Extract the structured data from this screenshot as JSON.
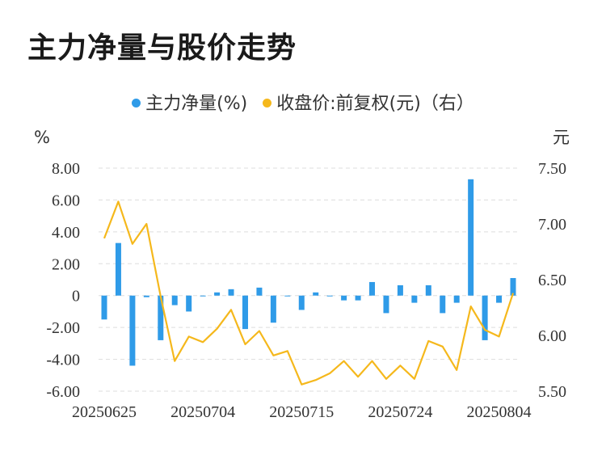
{
  "title": "主力净量与股价走势",
  "legend": {
    "bar_label": "主力净量(%)",
    "line_label": "收盘价:前复权(元)（右）"
  },
  "colors": {
    "bar": "#2f9be8",
    "line": "#f5b81c",
    "grid": "#dddddd"
  },
  "chart_data": {
    "type": "bar+line",
    "title": "主力净量与股价走势",
    "left_unit": "%",
    "right_unit": "元",
    "y_left": {
      "min": -6,
      "max": 8,
      "ticks": [
        8,
        6,
        4,
        2,
        0,
        -2,
        -4,
        -6
      ],
      "tick_labels": [
        "8.00",
        "6.00",
        "4.00",
        "2.00",
        "0",
        "-2.00",
        "-4.00",
        "-6.00"
      ]
    },
    "y_right": {
      "min": 5.5,
      "max": 7.5,
      "ticks": [
        7.5,
        7.0,
        6.5,
        6.0,
        5.5
      ],
      "tick_labels": [
        "7.50",
        "7.00",
        "6.50",
        "6.00",
        "5.50"
      ]
    },
    "x_tick_labels": [
      "20250625",
      "20250704",
      "20250715",
      "20250724",
      "20250804"
    ],
    "x_tick_index": [
      0,
      7,
      14,
      21,
      28
    ],
    "grid": true,
    "legend_position": "top",
    "series": [
      {
        "name": "主力净量(%)",
        "type": "bar",
        "axis": "left",
        "values": [
          -1.5,
          3.3,
          -4.4,
          -0.1,
          -2.8,
          -0.6,
          -1.0,
          -0.05,
          0.2,
          0.4,
          -2.1,
          0.5,
          -1.7,
          -0.05,
          -0.9,
          0.2,
          -0.05,
          -0.3,
          -0.3,
          0.85,
          -1.1,
          0.65,
          -0.45,
          0.65,
          -1.1,
          -0.45,
          7.3,
          -2.8,
          -0.45,
          1.1
        ]
      },
      {
        "name": "收盘价:前复权(元)（右）",
        "type": "line",
        "axis": "right",
        "values": [
          6.87,
          7.2,
          6.82,
          7.0,
          6.35,
          5.77,
          5.99,
          5.94,
          6.06,
          6.23,
          5.92,
          6.04,
          5.82,
          5.86,
          5.56,
          5.6,
          5.66,
          5.77,
          5.63,
          5.77,
          5.61,
          5.73,
          5.61,
          5.95,
          5.9,
          5.69,
          6.26,
          6.05,
          5.99,
          6.38
        ]
      }
    ]
  }
}
